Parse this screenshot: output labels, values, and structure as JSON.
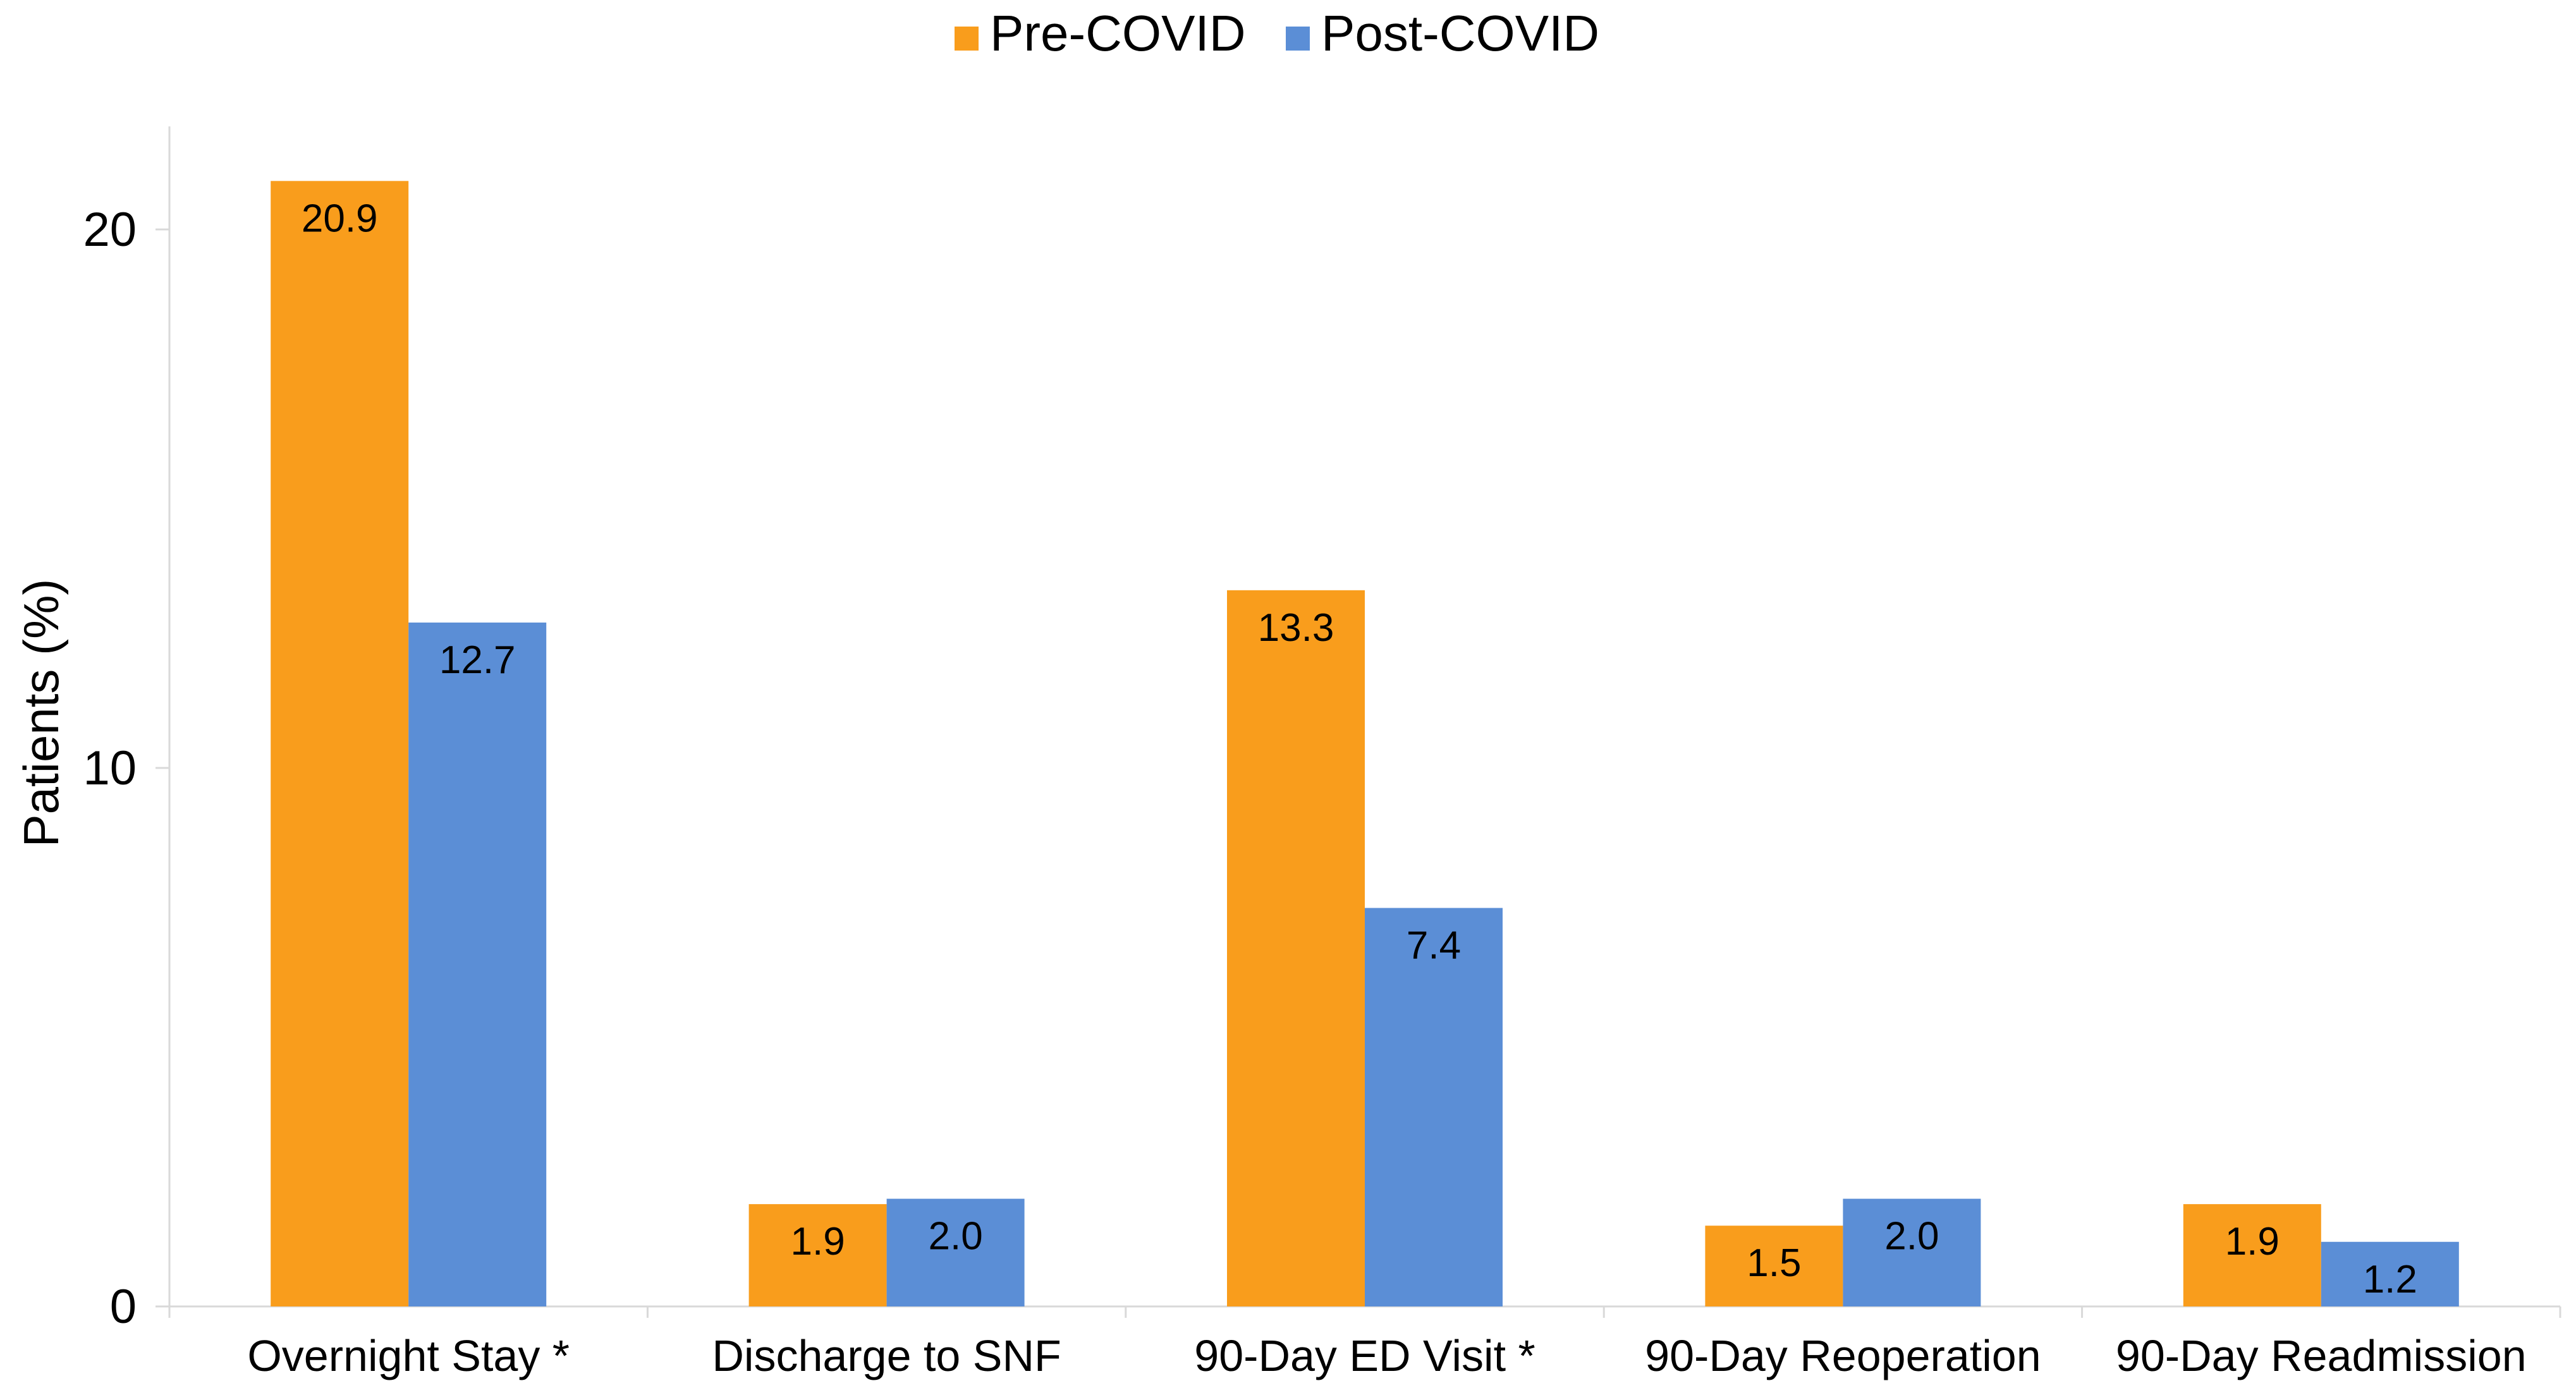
{
  "chart_data": {
    "type": "bar",
    "title": "",
    "xlabel": "",
    "ylabel": "Patients (%)",
    "ylim": [
      0,
      22
    ],
    "yticks": [
      0,
      10,
      20
    ],
    "grid": false,
    "legend_position": "top-center",
    "categories": [
      "Overnight Stay *",
      "Discharge to SNF",
      "90-Day ED Visit *",
      "90-Day Reoperation",
      "90-Day Readmission"
    ],
    "series": [
      {
        "name": "Pre-COVID",
        "color": "#F99D1C",
        "values": [
          20.9,
          1.9,
          13.3,
          1.5,
          1.9
        ],
        "labels": [
          "20.9",
          "1.9",
          "13.3",
          "1.5",
          "1.9"
        ]
      },
      {
        "name": "Post-COVID",
        "color": "#5B8ED6",
        "values": [
          12.7,
          2.0,
          7.4,
          2.0,
          1.2
        ],
        "labels": [
          "12.7",
          "2.0",
          "7.4",
          "2.0",
          "1.2"
        ]
      }
    ]
  }
}
